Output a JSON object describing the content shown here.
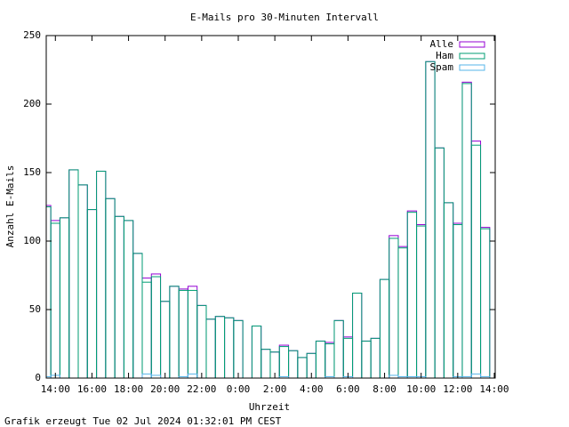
{
  "chart_data": {
    "type": "bar",
    "title": "E-Mails pro 30-Minuten Intervall",
    "xlabel": "Uhrzeit",
    "ylabel": "Anzahl E-Mails",
    "footer": "Grafik erzeugt Tue 02 Jul 2024 01:32:01 PM CEST",
    "x": [
      -0.5,
      0,
      0.5,
      1,
      1.5,
      2,
      2.5,
      3,
      3.5,
      4,
      4.5,
      5,
      5.5,
      6,
      6.5,
      7,
      7.5,
      8,
      8.5,
      9,
      9.5,
      10,
      10.5,
      11,
      11.5,
      12,
      12.5,
      13,
      13.5,
      14,
      14.5,
      15,
      15.5,
      16,
      16.5,
      17,
      17.5,
      18,
      18.5,
      19,
      19.5,
      20,
      20.5,
      21,
      21.5,
      22,
      22.5,
      23,
      23.5
    ],
    "series": [
      {
        "name": "Alle",
        "color": "#9400d3",
        "values": [
          126,
          115,
          117,
          152,
          141,
          123,
          151,
          131,
          118,
          115,
          91,
          73,
          76,
          56,
          67,
          65,
          67,
          53,
          43,
          45,
          44,
          42,
          0,
          38,
          21,
          19,
          24,
          20,
          15,
          18,
          27,
          26,
          42,
          30,
          62,
          27,
          29,
          72,
          104,
          96,
          122,
          112,
          231,
          168,
          128,
          113,
          216,
          173,
          110
        ]
      },
      {
        "name": "Ham",
        "color": "#009e73",
        "values": [
          125,
          113,
          117,
          152,
          141,
          123,
          151,
          131,
          118,
          115,
          91,
          70,
          74,
          56,
          67,
          64,
          64,
          53,
          43,
          45,
          44,
          42,
          0,
          38,
          21,
          19,
          23,
          20,
          15,
          18,
          27,
          25,
          42,
          29,
          62,
          27,
          29,
          72,
          102,
          95,
          121,
          111,
          231,
          168,
          128,
          112,
          215,
          170,
          109
        ]
      },
      {
        "name": "Spam",
        "color": "#56b4e9",
        "values": [
          1,
          2,
          0,
          0,
          0,
          0,
          0,
          0,
          0,
          0,
          0,
          3,
          2,
          0,
          0,
          1,
          3,
          0,
          0,
          0,
          0,
          0,
          0,
          0,
          0,
          0,
          1,
          0,
          0,
          0,
          0,
          1,
          0,
          1,
          0,
          0,
          0,
          0,
          2,
          1,
          1,
          1,
          0,
          0,
          0,
          1,
          1,
          3,
          1
        ]
      }
    ],
    "xlim": [
      -0.5,
      24.05
    ],
    "xticks": [
      {
        "value": 0,
        "label": "14:00"
      },
      {
        "value": 2,
        "label": "16:00"
      },
      {
        "value": 4,
        "label": "18:00"
      },
      {
        "value": 6,
        "label": "20:00"
      },
      {
        "value": 8,
        "label": "22:00"
      },
      {
        "value": 10,
        "label": "0:00"
      },
      {
        "value": 12,
        "label": "2:00"
      },
      {
        "value": 14,
        "label": "4:00"
      },
      {
        "value": 16,
        "label": "6:00"
      },
      {
        "value": 18,
        "label": "8:00"
      },
      {
        "value": 20,
        "label": "10:00"
      },
      {
        "value": 22,
        "label": "12:00"
      },
      {
        "value": 24,
        "label": "14:00"
      }
    ],
    "ylim": [
      0,
      250
    ],
    "yticks": [
      0,
      50,
      100,
      150,
      200,
      250
    ],
    "legend": "top-right"
  }
}
